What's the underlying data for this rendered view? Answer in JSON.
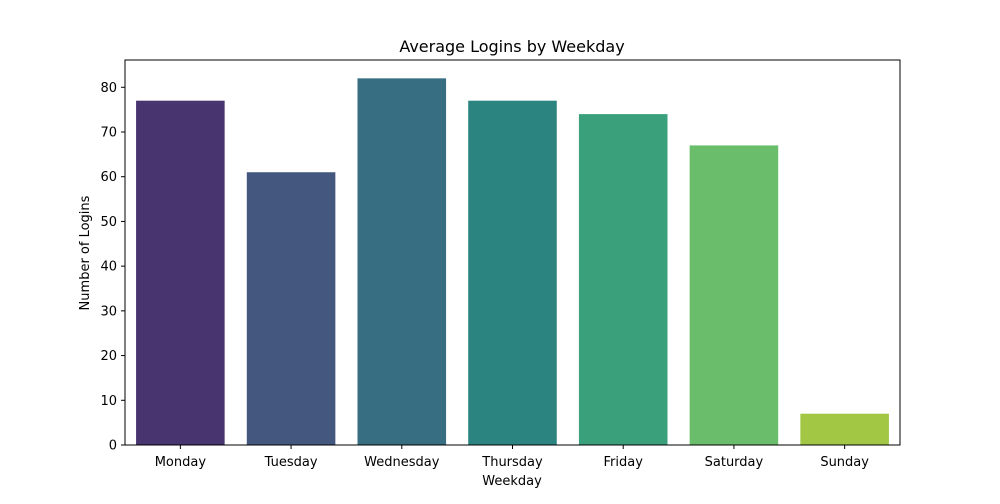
{
  "chart_data": {
    "type": "bar",
    "title": "Average Logins by Weekday",
    "xlabel": "Weekday",
    "ylabel": "Number of Logins",
    "categories": [
      "Monday",
      "Tuesday",
      "Wednesday",
      "Thursday",
      "Friday",
      "Saturday",
      "Sunday"
    ],
    "values": [
      77,
      61,
      82,
      77,
      74,
      67,
      7
    ],
    "colors": [
      "#48346f",
      "#44577f",
      "#386e82",
      "#2c8480",
      "#3aa07b",
      "#6abd6a",
      "#a1c745"
    ],
    "ylim": [
      0,
      86.1
    ],
    "yticks": [
      0,
      10,
      20,
      30,
      40,
      50,
      60,
      70,
      80
    ],
    "grid": false,
    "legend": "none"
  }
}
